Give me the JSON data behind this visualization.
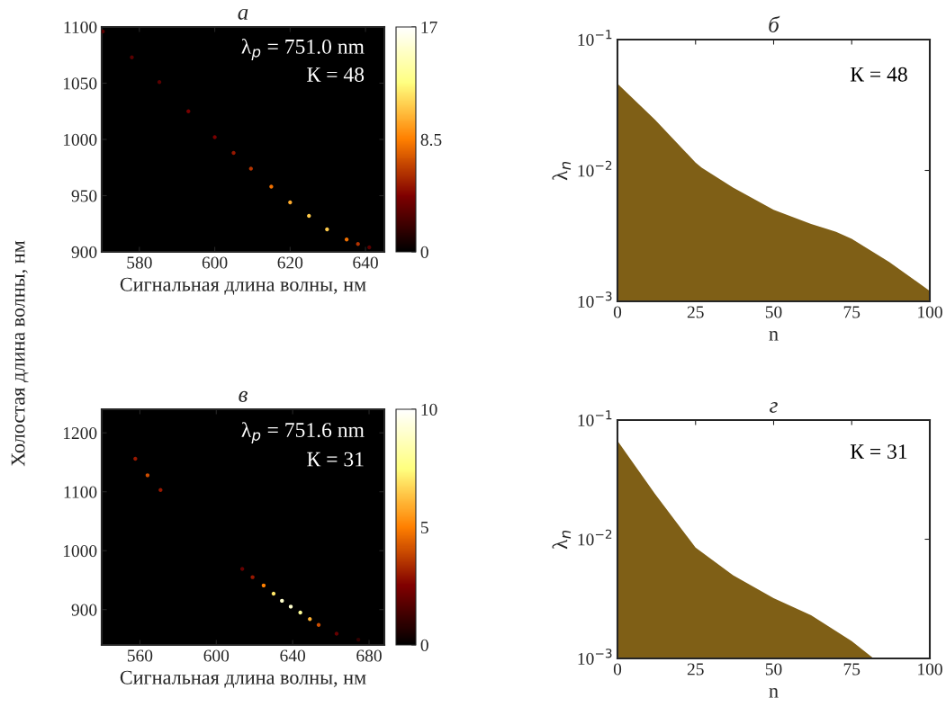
{
  "chart_data": [
    {
      "type": "scatter",
      "title": "а",
      "xlabel": "Сигнальная длина волны, нм",
      "ylabel": "Холостая длина волны, нм",
      "x": [
        570.3,
        578,
        585.3,
        593,
        600,
        605,
        609.6,
        615,
        620,
        625,
        629.8,
        635,
        638,
        641
      ],
      "values": [
        1096,
        1073,
        1051,
        1025,
        1002,
        988,
        974,
        958,
        944,
        932,
        920,
        911,
        907,
        904
      ],
      "cvalues": [
        3,
        3,
        3,
        4,
        4,
        5,
        6,
        8,
        10,
        11,
        11,
        8,
        6,
        3
      ],
      "clim": [
        0,
        17
      ],
      "cticks": [
        0,
        8.5,
        17
      ],
      "marker": "circle",
      "xlim": [
        570,
        645
      ],
      "ylim": [
        900,
        1100
      ],
      "xticks": [
        580,
        600,
        620,
        640
      ],
      "yticks": [
        900,
        950,
        1000,
        1050,
        1100
      ],
      "annotations": [
        "λ$_{p}$ = 751.0 nm",
        "К = 48"
      ]
    },
    {
      "type": "area",
      "title": "б",
      "xlabel": "n",
      "ylabel": "λ$_{n}$",
      "color": "#7f5f16",
      "log": "y",
      "x": [
        0,
        12,
        25,
        27,
        37,
        50,
        62,
        70,
        75,
        87,
        100
      ],
      "values": [
        0.046,
        0.0245,
        0.0115,
        0.0105,
        0.0074,
        0.005,
        0.0039,
        0.0034,
        0.003,
        0.002,
        0.0012
      ],
      "xlim": [
        0,
        100
      ],
      "ylim": [
        0.001,
        0.1
      ],
      "xticks": [
        0,
        25,
        50,
        75,
        100
      ],
      "yticks": [
        {
          "value": 0.001,
          "label": "10$^{−3}$"
        },
        {
          "value": 0.01,
          "label": "10$^{−2}$"
        },
        {
          "value": 0.1,
          "label": "10$^{−1}$"
        }
      ],
      "annotations": [
        "К = 48"
      ]
    },
    {
      "type": "scatter",
      "title": "в",
      "xlabel": "Сигнальная длина волны, нм",
      "x": [
        557.6,
        564,
        570.8,
        613.6,
        619,
        624.8,
        630,
        634.4,
        639,
        644,
        649,
        653.6,
        663,
        674.4
      ],
      "values": [
        1156,
        1128,
        1103,
        969,
        955,
        941,
        927,
        915,
        905,
        895,
        884,
        874,
        859,
        849
      ],
      "cvalues": [
        3,
        4,
        3,
        2,
        3,
        5,
        7,
        9,
        9,
        8,
        6,
        4,
        2,
        1
      ],
      "clim": [
        0,
        10
      ],
      "cticks": [
        0,
        5,
        10
      ],
      "marker": "circle",
      "xlim": [
        540,
        688
      ],
      "ylim": [
        840,
        1240
      ],
      "xticks": [
        560,
        600,
        640,
        680
      ],
      "yticks": [
        900,
        1000,
        1100,
        1200
      ],
      "annotations": [
        "λ$_{p}$ = 751.6 nm",
        "К = 31"
      ]
    },
    {
      "type": "area",
      "title": "г",
      "xlabel": "n",
      "ylabel": "λ$_{n}$",
      "color": "#7f5f16",
      "log": "y",
      "x": [
        0,
        12,
        25,
        37,
        50,
        62,
        75,
        82
      ],
      "values": [
        0.067,
        0.024,
        0.0085,
        0.005,
        0.0032,
        0.0023,
        0.0014,
        0.001
      ],
      "xlim": [
        0,
        100
      ],
      "ylim": [
        0.001,
        0.1
      ],
      "xticks": [
        0,
        25,
        50,
        75,
        100
      ],
      "yticks": [
        {
          "value": 0.001,
          "label": "10$^{−3}$"
        },
        {
          "value": 0.01,
          "label": "10$^{−2}$"
        },
        {
          "value": 0.1,
          "label": "10$^{−1}$"
        }
      ],
      "annotations": [
        "К = 31"
      ]
    }
  ]
}
